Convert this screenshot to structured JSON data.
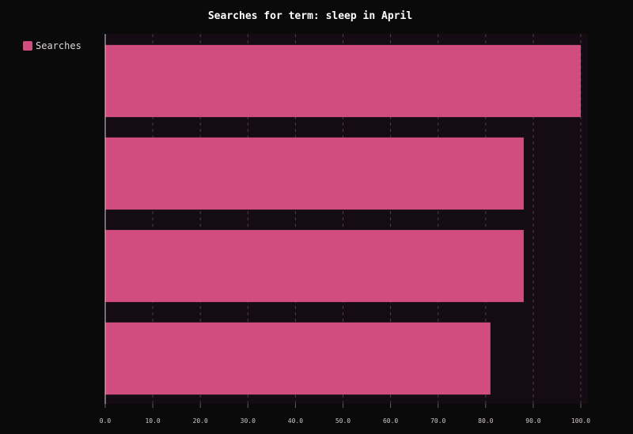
{
  "chart_data": {
    "type": "bar",
    "orientation": "horizontal",
    "title": "Searches for term: sleep in April",
    "xlabel": "",
    "ylabel": "",
    "xlim": [
      0,
      100
    ],
    "x_ticks": [
      "0.0",
      "10.0",
      "20.0",
      "30.0",
      "40.0",
      "50.0",
      "60.0",
      "70.0",
      "80.0",
      "90.0",
      "100.0"
    ],
    "categories": [
      "",
      "",
      "",
      ""
    ],
    "series": [
      {
        "name": "Searches",
        "color": "#d14d80",
        "values": [
          100,
          88,
          88,
          81
        ]
      }
    ],
    "legend_position": "top-left",
    "grid": true
  }
}
